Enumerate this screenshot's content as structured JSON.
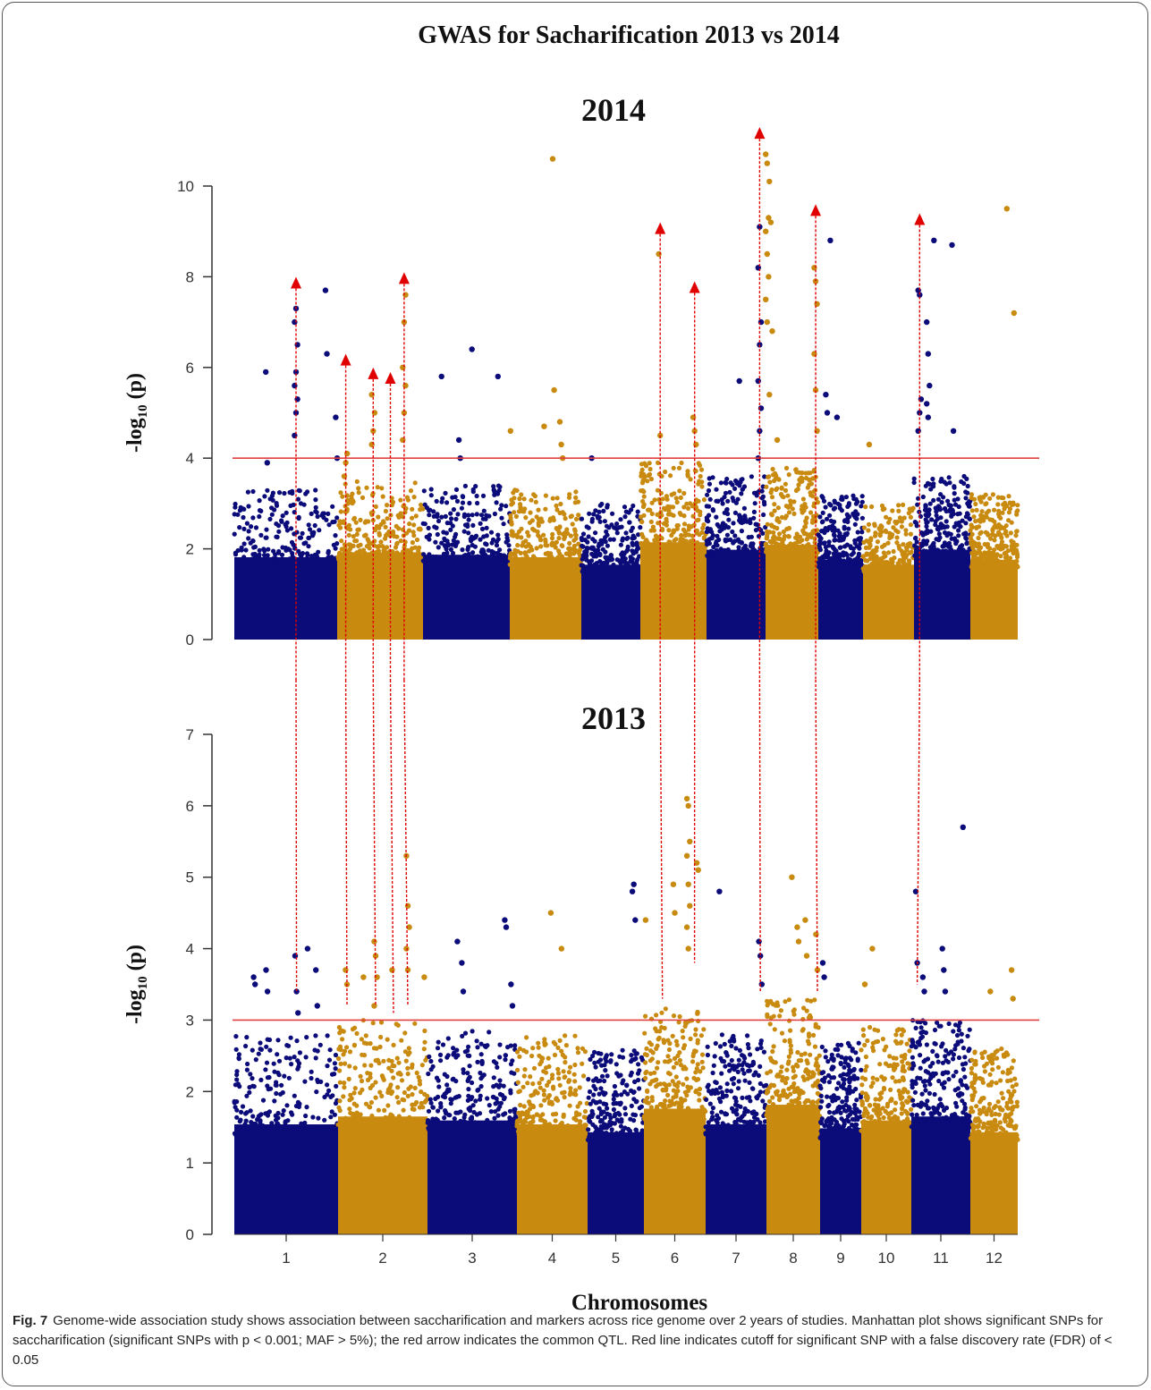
{
  "main_title": "GWAS for Sacharification 2013 vs 2014",
  "caption": {
    "label": "Fig. 7",
    "text": "Genome-wide association study shows association between saccharification and markers across rice genome over 2 years of studies. Manhattan plot shows significant SNPs for saccharification (significant SNPs with p < 0.001; MAF > 5%); the red arrow indicates the common QTL. Red line indicates cutoff for significant SNP with a false discovery rate (FDR) of < 0.05"
  },
  "colors": {
    "navy": "#0b0b7a",
    "gold": "#c98a10",
    "threshold": "#e04040",
    "arrow": "#e00000"
  },
  "chart_data": [
    {
      "type": "scatter",
      "title": "2014",
      "ylabel": "-log10 (p)",
      "xlabel": "",
      "ylim": [
        0,
        11.2
      ],
      "yticks": [
        0,
        2,
        4,
        6,
        8,
        10
      ],
      "threshold": 4,
      "chromosomes": [
        {
          "chr": 1,
          "color": "navy",
          "noise_max": 3.3
        },
        {
          "chr": 2,
          "color": "gold",
          "noise_max": 3.5
        },
        {
          "chr": 3,
          "color": "navy",
          "noise_max": 3.4
        },
        {
          "chr": 4,
          "color": "gold",
          "noise_max": 3.3
        },
        {
          "chr": 5,
          "color": "navy",
          "noise_max": 3.0
        },
        {
          "chr": 6,
          "color": "gold",
          "noise_max": 3.9
        },
        {
          "chr": 7,
          "color": "navy",
          "noise_max": 3.6
        },
        {
          "chr": 8,
          "color": "gold",
          "noise_max": 3.8
        },
        {
          "chr": 9,
          "color": "navy",
          "noise_max": 3.2
        },
        {
          "chr": 10,
          "color": "gold",
          "noise_max": 3.0
        },
        {
          "chr": 11,
          "color": "navy",
          "noise_max": 3.6
        },
        {
          "chr": 12,
          "color": "gold",
          "noise_max": 3.2
        }
      ],
      "peaks": [
        {
          "chr": 1,
          "pos": 0.6,
          "values": [
            4.5,
            5.0,
            5.3,
            5.6,
            5.9,
            6.5,
            7.0,
            7.3
          ]
        },
        {
          "chr": 1,
          "pos": 0.32,
          "values": [
            5.9,
            3.9
          ]
        },
        {
          "chr": 1,
          "pos": 0.9,
          "values": [
            7.7,
            6.3
          ]
        },
        {
          "chr": 1,
          "pos": 1.0,
          "values": [
            4.9,
            4.0
          ]
        },
        {
          "chr": 2,
          "pos": 0.1,
          "values": [
            3.6,
            3.9,
            4.1
          ]
        },
        {
          "chr": 2,
          "pos": 0.42,
          "values": [
            4.3,
            4.6,
            5.0,
            5.4
          ]
        },
        {
          "chr": 2,
          "pos": 0.78,
          "values": [
            4.4,
            5.0,
            5.6,
            6.0,
            7.0,
            7.6
          ]
        },
        {
          "chr": 3,
          "pos": 0.23,
          "values": [
            5.8
          ]
        },
        {
          "chr": 3,
          "pos": 0.43,
          "values": [
            4.4,
            4.0
          ]
        },
        {
          "chr": 3,
          "pos": 0.58,
          "values": [
            6.4
          ]
        },
        {
          "chr": 3,
          "pos": 0.88,
          "values": [
            5.8
          ]
        },
        {
          "chr": 4,
          "pos": 0.03,
          "values": [
            4.6
          ]
        },
        {
          "chr": 4,
          "pos": 0.5,
          "values": [
            4.7
          ]
        },
        {
          "chr": 4,
          "pos": 0.62,
          "values": [
            10.6,
            5.5
          ]
        },
        {
          "chr": 4,
          "pos": 0.72,
          "values": [
            4.8,
            4.3,
            4.0
          ]
        },
        {
          "chr": 5,
          "pos": 0.2,
          "values": [
            4.0
          ]
        },
        {
          "chr": 6,
          "pos": 0.3,
          "values": [
            8.5,
            4.5
          ]
        },
        {
          "chr": 6,
          "pos": 0.82,
          "values": [
            4.9,
            4.6,
            4.3
          ]
        },
        {
          "chr": 7,
          "pos": 0.58,
          "values": [
            5.7
          ]
        },
        {
          "chr": 7,
          "pos": 0.9,
          "values": [
            4.0,
            4.6,
            5.1,
            5.7,
            6.5,
            7.0,
            8.2,
            9.1
          ]
        },
        {
          "chr": 8,
          "pos": 0.03,
          "values": [
            10.7,
            10.5,
            9.3,
            9.0,
            8.5,
            8.0,
            7.5,
            7.0
          ]
        },
        {
          "chr": 8,
          "pos": 0.1,
          "values": [
            10.1,
            9.2,
            6.8,
            5.4
          ]
        },
        {
          "chr": 8,
          "pos": 0.25,
          "values": [
            4.4
          ]
        },
        {
          "chr": 8,
          "pos": 0.95,
          "values": [
            8.2,
            7.9,
            7.4,
            6.3,
            5.5,
            4.6
          ]
        },
        {
          "chr": 9,
          "pos": 0.2,
          "values": [
            5.4,
            5.0
          ]
        },
        {
          "chr": 9,
          "pos": 0.3,
          "values": [
            8.8
          ]
        },
        {
          "chr": 9,
          "pos": 0.45,
          "values": [
            4.9
          ]
        },
        {
          "chr": 10,
          "pos": 0.15,
          "values": [
            4.3
          ]
        },
        {
          "chr": 11,
          "pos": 0.1,
          "values": [
            4.6,
            5.0,
            5.3,
            7.7,
            7.6
          ]
        },
        {
          "chr": 11,
          "pos": 0.25,
          "values": [
            7.0,
            6.3,
            5.6,
            5.2,
            4.9
          ]
        },
        {
          "chr": 11,
          "pos": 0.38,
          "values": [
            8.8
          ]
        },
        {
          "chr": 11,
          "pos": 0.7,
          "values": [
            8.7,
            4.6
          ]
        },
        {
          "chr": 12,
          "pos": 0.8,
          "values": [
            9.5
          ]
        },
        {
          "chr": 12,
          "pos": 0.95,
          "values": [
            7.2
          ]
        }
      ],
      "arrows": [
        {
          "chr": 1,
          "pos": 0.6,
          "value": 7.9
        },
        {
          "chr": 2,
          "pos": 0.1,
          "value": 6.2
        },
        {
          "chr": 2,
          "pos": 0.42,
          "value": 5.9
        },
        {
          "chr": 2,
          "pos": 0.62,
          "value": 5.8
        },
        {
          "chr": 2,
          "pos": 0.78,
          "value": 8.0
        },
        {
          "chr": 6,
          "pos": 0.3,
          "value": 9.1
        },
        {
          "chr": 6,
          "pos": 0.82,
          "value": 7.8
        },
        {
          "chr": 7,
          "pos": 0.9,
          "value": 11.2
        },
        {
          "chr": 8,
          "pos": 0.95,
          "value": 9.5
        },
        {
          "chr": 11,
          "pos": 0.1,
          "value": 9.3
        }
      ]
    },
    {
      "type": "scatter",
      "title": "2013",
      "ylabel": "-log10 (p)",
      "xlabel": "Chromosomes",
      "ylim": [
        0,
        7
      ],
      "yticks": [
        0,
        1,
        2,
        3,
        4,
        5,
        6,
        7
      ],
      "threshold": 3,
      "categories": [
        "1",
        "2",
        "3",
        "4",
        "5",
        "6",
        "7",
        "8",
        "9",
        "10",
        "11",
        "12"
      ],
      "chromosomes": [
        {
          "chr": 1,
          "color": "navy",
          "noise_max": 2.8
        },
        {
          "chr": 2,
          "color": "gold",
          "noise_max": 3.0
        },
        {
          "chr": 3,
          "color": "navy",
          "noise_max": 2.9
        },
        {
          "chr": 4,
          "color": "gold",
          "noise_max": 2.8
        },
        {
          "chr": 5,
          "color": "navy",
          "noise_max": 2.6
        },
        {
          "chr": 6,
          "color": "gold",
          "noise_max": 3.2
        },
        {
          "chr": 7,
          "color": "navy",
          "noise_max": 2.8
        },
        {
          "chr": 8,
          "color": "gold",
          "noise_max": 3.3
        },
        {
          "chr": 9,
          "color": "navy",
          "noise_max": 2.7
        },
        {
          "chr": 10,
          "color": "gold",
          "noise_max": 2.9
        },
        {
          "chr": 11,
          "color": "navy",
          "noise_max": 3.0
        },
        {
          "chr": 12,
          "color": "gold",
          "noise_max": 2.6
        }
      ],
      "peaks": [
        {
          "chr": 1,
          "pos": 0.2,
          "values": [
            3.6,
            3.5
          ]
        },
        {
          "chr": 1,
          "pos": 0.32,
          "values": [
            3.7,
            3.4
          ]
        },
        {
          "chr": 1,
          "pos": 0.6,
          "values": [
            3.9,
            3.4,
            3.1
          ]
        },
        {
          "chr": 1,
          "pos": 0.72,
          "values": [
            4.0
          ]
        },
        {
          "chr": 1,
          "pos": 0.8,
          "values": [
            3.7,
            3.2
          ]
        },
        {
          "chr": 2,
          "pos": 0.1,
          "values": [
            3.7,
            3.5
          ]
        },
        {
          "chr": 2,
          "pos": 0.3,
          "values": [
            3.6
          ]
        },
        {
          "chr": 2,
          "pos": 0.42,
          "values": [
            4.1,
            3.9,
            3.6,
            3.2
          ]
        },
        {
          "chr": 2,
          "pos": 0.62,
          "values": [
            3.7
          ]
        },
        {
          "chr": 2,
          "pos": 0.78,
          "values": [
            5.3,
            4.6,
            4.3,
            4.0,
            3.7
          ]
        },
        {
          "chr": 2,
          "pos": 0.98,
          "values": [
            3.6
          ]
        },
        {
          "chr": 3,
          "pos": 0.35,
          "values": [
            4.1
          ]
        },
        {
          "chr": 3,
          "pos": 0.4,
          "values": [
            3.8,
            3.4
          ]
        },
        {
          "chr": 3,
          "pos": 0.88,
          "values": [
            4.4,
            4.3
          ]
        },
        {
          "chr": 3,
          "pos": 0.95,
          "values": [
            3.5,
            3.2
          ]
        },
        {
          "chr": 4,
          "pos": 0.5,
          "values": [
            4.5
          ]
        },
        {
          "chr": 4,
          "pos": 0.65,
          "values": [
            4.0
          ]
        },
        {
          "chr": 5,
          "pos": 0.82,
          "values": [
            4.8,
            4.9,
            4.4
          ]
        },
        {
          "chr": 6,
          "pos": 0.05,
          "values": [
            4.4
          ]
        },
        {
          "chr": 6,
          "pos": 0.5,
          "values": [
            4.9,
            4.5
          ]
        },
        {
          "chr": 6,
          "pos": 0.72,
          "values": [
            6.1,
            6.0,
            5.5,
            5.3,
            4.9,
            4.6,
            4.3,
            4.0
          ]
        },
        {
          "chr": 6,
          "pos": 0.88,
          "values": [
            5.2,
            5.1
          ]
        },
        {
          "chr": 7,
          "pos": 0.25,
          "values": [
            4.8
          ]
        },
        {
          "chr": 7,
          "pos": 0.9,
          "values": [
            4.1,
            3.9,
            3.5
          ]
        },
        {
          "chr": 8,
          "pos": 0.5,
          "values": [
            5.0
          ]
        },
        {
          "chr": 8,
          "pos": 0.6,
          "values": [
            4.3,
            4.1
          ]
        },
        {
          "chr": 8,
          "pos": 0.75,
          "values": [
            4.4,
            3.9
          ]
        },
        {
          "chr": 8,
          "pos": 0.95,
          "values": [
            4.2,
            3.7
          ]
        },
        {
          "chr": 9,
          "pos": 0.1,
          "values": [
            3.8,
            3.6
          ]
        },
        {
          "chr": 10,
          "pos": 0.25,
          "values": [
            4.0
          ]
        },
        {
          "chr": 10,
          "pos": 0.1,
          "values": [
            3.5
          ]
        },
        {
          "chr": 11,
          "pos": 0.1,
          "values": [
            4.8,
            3.8
          ]
        },
        {
          "chr": 11,
          "pos": 0.22,
          "values": [
            3.6,
            3.4
          ]
        },
        {
          "chr": 11,
          "pos": 0.55,
          "values": [
            4.0,
            3.7,
            3.4
          ]
        },
        {
          "chr": 11,
          "pos": 0.9,
          "values": [
            5.7
          ]
        },
        {
          "chr": 12,
          "pos": 0.45,
          "values": [
            3.4
          ]
        },
        {
          "chr": 12,
          "pos": 0.9,
          "values": [
            3.7,
            3.3
          ]
        }
      ],
      "arrow_anchors": [
        {
          "chr": 1,
          "pos": 0.6,
          "value": 3.4
        },
        {
          "chr": 2,
          "pos": 0.1,
          "value": 3.2
        },
        {
          "chr": 2,
          "pos": 0.42,
          "value": 3.2
        },
        {
          "chr": 2,
          "pos": 0.62,
          "value": 3.1
        },
        {
          "chr": 2,
          "pos": 0.78,
          "value": 3.2
        },
        {
          "chr": 6,
          "pos": 0.3,
          "value": 3.3
        },
        {
          "chr": 6,
          "pos": 0.82,
          "value": 3.8
        },
        {
          "chr": 7,
          "pos": 0.9,
          "value": 3.4
        },
        {
          "chr": 8,
          "pos": 0.95,
          "value": 3.4
        },
        {
          "chr": 11,
          "pos": 0.1,
          "value": 3.5
        }
      ]
    }
  ]
}
